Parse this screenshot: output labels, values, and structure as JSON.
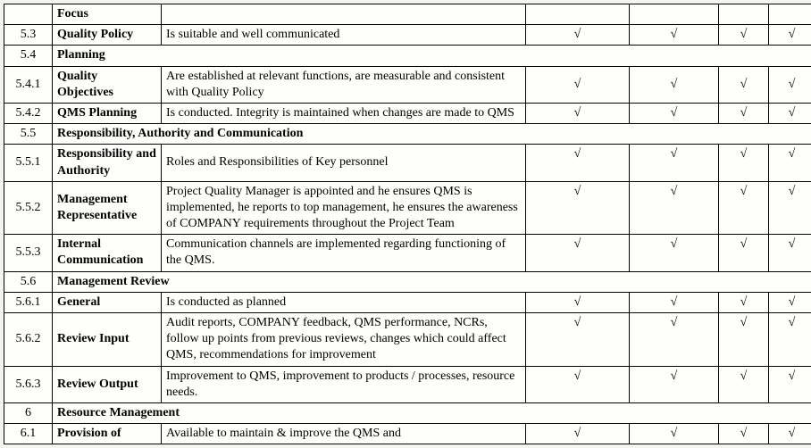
{
  "checkmark": "√",
  "rows": {
    "r0": {
      "num": "",
      "topic": "Focus",
      "desc": "",
      "c3": "",
      "c4": "",
      "c5": "",
      "c6": ""
    },
    "r1": {
      "num": "5.3",
      "topic": "Quality Policy",
      "desc": "Is suitable and well communicated"
    },
    "r2": {
      "num": "5.4",
      "section": "Planning"
    },
    "r3": {
      "num": "5.4.1",
      "topic": "Quality Objectives",
      "desc": "Are established at relevant functions, are measurable and consistent with Quality Policy"
    },
    "r4": {
      "num": "5.4.2",
      "topic": "QMS Planning",
      "desc": "Is conducted. Integrity is maintained when changes are made to QMS"
    },
    "r5": {
      "num": "5.5",
      "section": "Responsibility, Authority and Communication"
    },
    "r6": {
      "num": "5.5.1",
      "topic": "Responsibility and Authority",
      "desc": "Roles and Responsibilities of Key personnel"
    },
    "r7": {
      "num": "5.5.2",
      "topic": "Management Representative",
      "desc": "Project Quality Manager is appointed and he ensures QMS is implemented, he reports to top management, he ensures the awareness of COMPANY requirements throughout the Project Team"
    },
    "r8": {
      "num": "5.5.3",
      "topic": "Internal Communication",
      "desc": "Communication channels are implemented regarding functioning of the QMS."
    },
    "r9": {
      "num": "5.6",
      "section": "Management Review"
    },
    "r10": {
      "num": "5.6.1",
      "topic": "General",
      "desc": "Is conducted as planned"
    },
    "r11": {
      "num": "5.6.2",
      "topic": "Review Input",
      "desc": "Audit reports, COMPANY feedback, QMS performance, NCRs, follow up points from previous reviews, changes which could affect QMS, recommendations for improvement"
    },
    "r12": {
      "num": "5.6.3",
      "topic": "Review Output",
      "desc": "Improvement to QMS, improvement to products / processes, resource needs."
    },
    "r13": {
      "num": "6",
      "section": "Resource Management"
    },
    "r14": {
      "num": "6.1",
      "topic": "Provision of",
      "desc": "Available to maintain & improve the QMS and"
    }
  }
}
